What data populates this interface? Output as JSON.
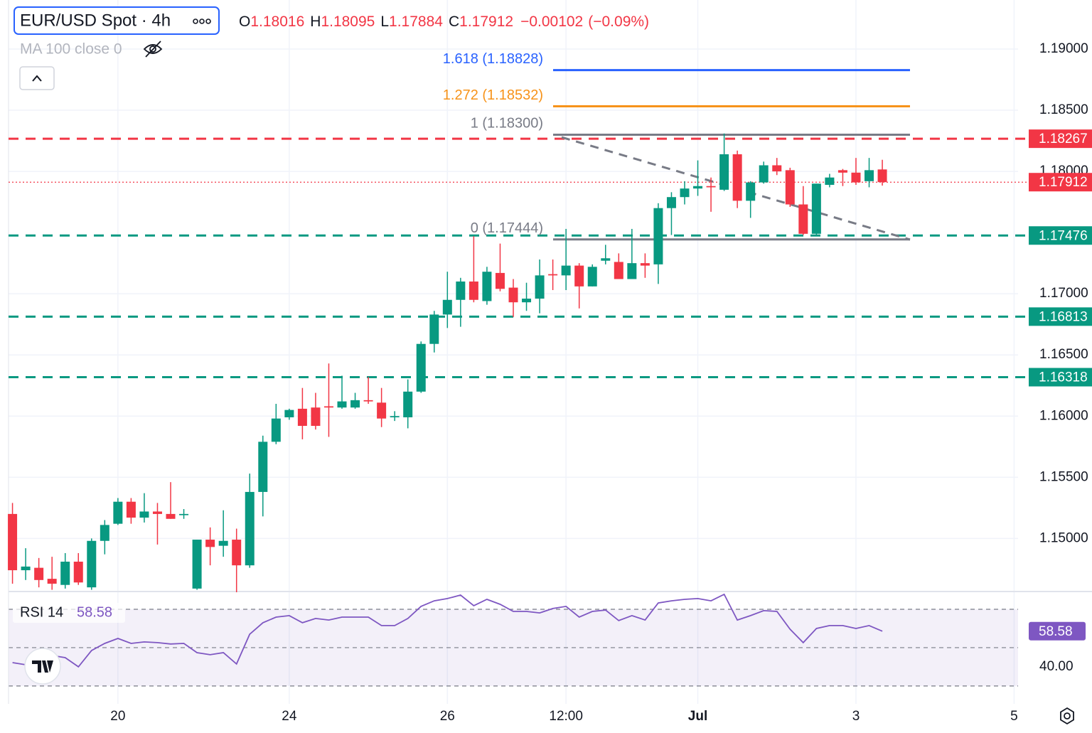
{
  "chart_data": {
    "type": "candlestick",
    "title": "EUR/USD Spot · 4h",
    "header_labels": {
      "open": "O",
      "high": "H",
      "low": "L",
      "close": "C"
    },
    "change": {
      "value": -0.00102,
      "label": "−0.00102"
    },
    "change_percent": {
      "value": -0.09,
      "label": "(−0.09%)"
    },
    "indicator_label": "MA 100 close 0",
    "open": [
      1.152,
      1.1474,
      1.1476,
      1.1467,
      1.1462,
      1.1481,
      1.146,
      1.1498,
      1.1512,
      1.153,
      1.1517,
      1.1522,
      1.152,
      1.1519,
      1.1459,
      1.1499,
      1.1494,
      1.1499,
      1.1478,
      1.1538,
      1.1579,
      1.1599,
      1.1606,
      1.1607,
      1.1608,
      1.1607,
      1.1607,
      1.1613,
      1.1611,
      1.1599,
      1.1599,
      1.162,
      1.1659,
      1.1683,
      1.1695,
      1.171,
      1.1694,
      1.1717,
      1.1705,
      1.1693,
      1.1696,
      1.1716,
      1.1715,
      1.1723,
      1.1706,
      1.1727,
      1.1726,
      1.1712,
      1.1725,
      1.1724,
      1.177,
      1.1779,
      1.1786,
      1.1788,
      1.1785,
      1.1814,
      1.1776,
      1.1791,
      1.1805,
      1.1801,
      1.1773,
      1.1749,
      1.1789,
      1.1801,
      1.1799,
      1.1792,
      1.18016
    ],
    "high": [
      1.1529,
      1.1492,
      1.1484,
      1.1485,
      1.1488,
      1.1488,
      1.15,
      1.1515,
      1.1533,
      1.1533,
      1.1537,
      1.1529,
      1.1546,
      1.1524,
      1.1499,
      1.1509,
      1.1523,
      1.1508,
      1.1553,
      1.1584,
      1.161,
      1.1606,
      1.1623,
      1.1619,
      1.1643,
      1.1633,
      1.1619,
      1.1632,
      1.1623,
      1.1604,
      1.163,
      1.1661,
      1.1686,
      1.1718,
      1.1713,
      1.1747,
      1.1722,
      1.1741,
      1.1712,
      1.1709,
      1.1728,
      1.1728,
      1.1753,
      1.1725,
      1.1724,
      1.174,
      1.1733,
      1.1753,
      1.1733,
      1.1774,
      1.1783,
      1.1792,
      1.1809,
      1.1795,
      1.1831,
      1.1817,
      1.1792,
      1.1808,
      1.1811,
      1.1803,
      1.1788,
      1.179,
      1.1798,
      1.1802,
      1.1811,
      1.1811,
      1.18095
    ],
    "low": [
      1.1463,
      1.1466,
      1.146,
      1.1458,
      1.1459,
      1.1462,
      1.1458,
      1.1487,
      1.1511,
      1.1512,
      1.1513,
      1.1495,
      1.1516,
      1.1516,
      1.1458,
      1.1478,
      1.1485,
      1.1456,
      1.1476,
      1.1518,
      1.1577,
      1.1597,
      1.1581,
      1.1589,
      1.1583,
      1.1606,
      1.1606,
      1.161,
      1.1591,
      1.1596,
      1.159,
      1.1619,
      1.1652,
      1.1672,
      1.1673,
      1.1693,
      1.1691,
      1.1702,
      1.1681,
      1.1686,
      1.1684,
      1.1703,
      1.1703,
      1.1688,
      1.1706,
      1.1724,
      1.1712,
      1.1712,
      1.1713,
      1.1708,
      1.1748,
      1.1773,
      1.178,
      1.1767,
      1.1784,
      1.177,
      1.1762,
      1.179,
      1.1797,
      1.1771,
      1.1748,
      1.1748,
      1.1787,
      1.1788,
      1.1789,
      1.1787,
      1.17884
    ],
    "close": [
      1.1474,
      1.1477,
      1.1466,
      1.1463,
      1.1481,
      1.1464,
      1.1498,
      1.1511,
      1.153,
      1.1517,
      1.1522,
      1.152,
      1.1516,
      1.152,
      1.1499,
      1.1493,
      1.1498,
      1.1478,
      1.1538,
      1.1579,
      1.1598,
      1.1605,
      1.1592,
      1.1592,
      1.1607,
      1.1612,
      1.1613,
      1.1612,
      1.1598,
      1.16,
      1.162,
      1.1659,
      1.1683,
      1.1695,
      1.171,
      1.1695,
      1.1718,
      1.1704,
      1.1693,
      1.1696,
      1.1715,
      1.1715,
      1.1723,
      1.1706,
      1.1722,
      1.1729,
      1.1712,
      1.1725,
      1.1723,
      1.177,
      1.1779,
      1.1786,
      1.1788,
      1.1787,
      1.1814,
      1.1776,
      1.1791,
      1.1805,
      1.18,
      1.1773,
      1.1749,
      1.179,
      1.1795,
      1.1799,
      1.1791,
      1.1801,
      1.17912
    ],
    "up_color": "#089981",
    "down_color": "#f23645",
    "xlim": [
      -0.3,
      76.3
    ],
    "xticks": [
      {
        "value": 8,
        "label": "20"
      },
      {
        "value": 21,
        "label": "24"
      },
      {
        "value": 33,
        "label": "26"
      },
      {
        "value": 42,
        "label": "12:00"
      },
      {
        "value": 52,
        "label": "Jul"
      },
      {
        "value": 64,
        "label": "3"
      },
      {
        "value": 76,
        "label": "5"
      }
    ],
    "ylim": [
      1.14566,
      1.19401
    ],
    "yticks": [
      {
        "value": 1.15,
        "label": "1.15000"
      },
      {
        "value": 1.155,
        "label": "1.15500"
      },
      {
        "value": 1.16,
        "label": "1.16000"
      },
      {
        "value": 1.165,
        "label": "1.16500"
      },
      {
        "value": 1.17,
        "label": "1.17000"
      },
      {
        "value": 1.18,
        "label": "1.18000"
      },
      {
        "value": 1.185,
        "label": "1.18500"
      },
      {
        "value": 1.19,
        "label": "1.19000"
      }
    ],
    "grid": true,
    "levels": [
      {
        "value": 1.18267,
        "color": "#f23645"
      },
      {
        "value": 1.17476,
        "color": "#089981"
      },
      {
        "value": 1.16813,
        "color": "#089981"
      },
      {
        "value": 1.16318,
        "color": "#089981"
      }
    ],
    "fib_levels": [
      {
        "value": 1.18828,
        "label": "1.618 (1.18828)",
        "color": "#2962ff"
      },
      {
        "value": 1.18532,
        "label": "1.272 (1.18532)",
        "color": "#f7931a"
      },
      {
        "value": 1.183,
        "label": "1 (1.18300)",
        "color": "#787b86"
      },
      {
        "value": 1.17444,
        "label": "0 (1.17444)",
        "color": "#787b86"
      }
    ],
    "rsi": {
      "title": "RSI 14",
      "color": "#7e57c2",
      "values": [
        42.2,
        41.1,
        43.7,
        45.9,
        44.8,
        40.0,
        48.5,
        52.2,
        54.8,
        52.2,
        53.0,
        52.6,
        51.9,
        52.2,
        47.4,
        46.3,
        47.4,
        41.5,
        57.0,
        63.0,
        65.9,
        66.7,
        63.0,
        65.2,
        64.4,
        65.9,
        65.9,
        65.9,
        61.5,
        61.5,
        65.2,
        71.5,
        74.4,
        75.6,
        77.4,
        71.9,
        75.2,
        72.6,
        68.9,
        68.9,
        68.1,
        70.4,
        71.5,
        65.9,
        68.9,
        69.6,
        64.1,
        66.7,
        64.4,
        73.3,
        74.4,
        75.2,
        75.6,
        74.4,
        77.8,
        64.4,
        66.7,
        69.3,
        68.9,
        59.6,
        52.6,
        60.0,
        61.5,
        61.5,
        60.0,
        61.5,
        58.58
      ],
      "ylim": [
        20.7,
        79.26
      ],
      "yticks": [
        {
          "value": 40,
          "label": "40.00"
        }
      ],
      "bands": [
        70,
        50,
        30
      ]
    }
  }
}
